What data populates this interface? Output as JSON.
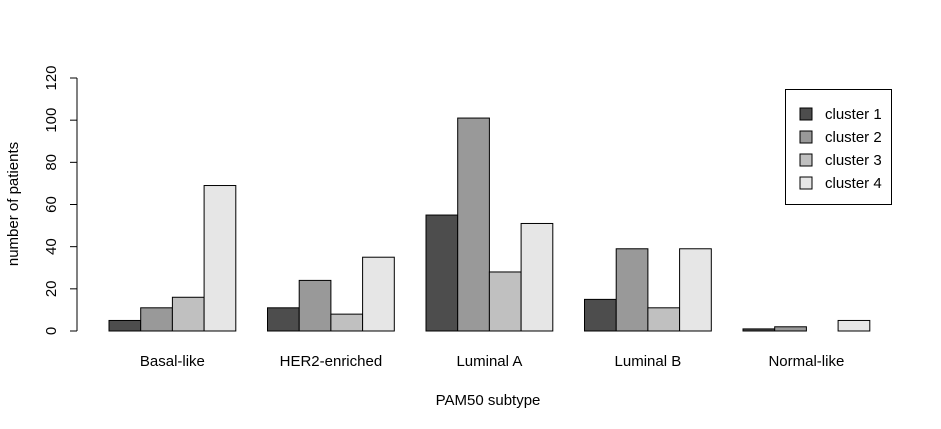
{
  "chart_data": {
    "type": "bar",
    "title": "",
    "xlabel": "PAM50 subtype",
    "ylabel": "number of patients",
    "ylim": [
      0,
      120
    ],
    "yticks": [
      0,
      20,
      40,
      60,
      80,
      100,
      120
    ],
    "categories": [
      "Basal-like",
      "HER2-enriched",
      "Luminal A",
      "Luminal B",
      "Normal-like"
    ],
    "series": [
      {
        "name": "cluster 1",
        "color": "#4d4d4d",
        "values": [
          5,
          11,
          55,
          15,
          1
        ]
      },
      {
        "name": "cluster 2",
        "color": "#999999",
        "values": [
          11,
          24,
          101,
          39,
          2
        ]
      },
      {
        "name": "cluster 3",
        "color": "#c0c0c0",
        "values": [
          16,
          8,
          28,
          11,
          0
        ]
      },
      {
        "name": "cluster 4",
        "color": "#e6e6e6",
        "values": [
          69,
          35,
          51,
          39,
          5
        ]
      }
    ],
    "legend_position": "top-right",
    "grid": false
  }
}
